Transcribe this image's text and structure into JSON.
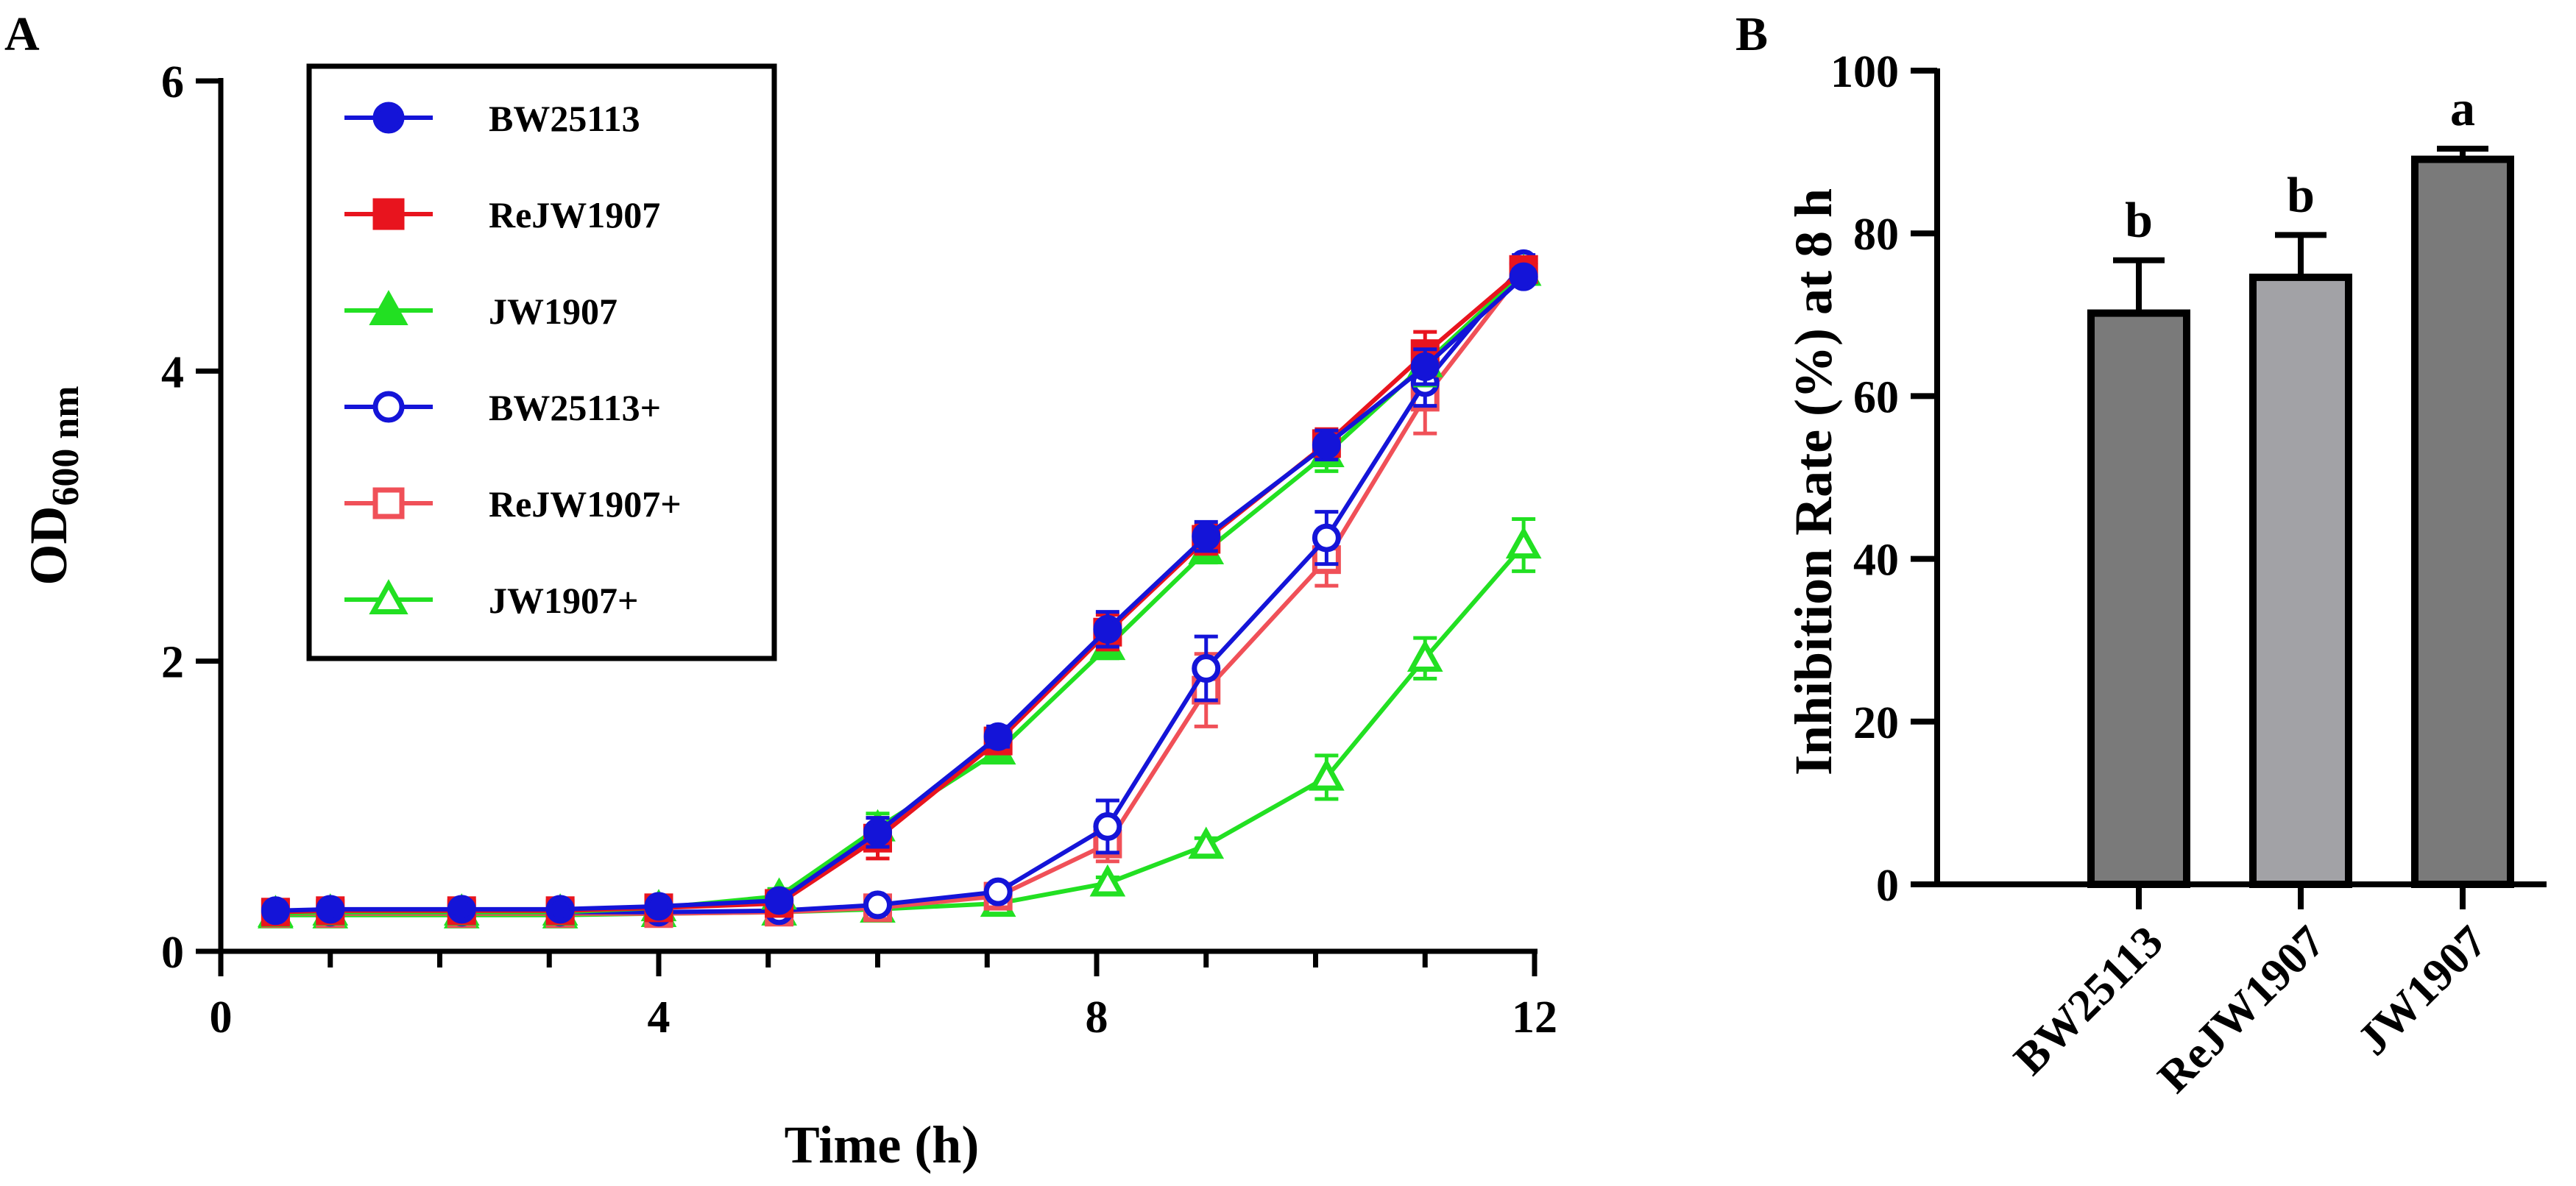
{
  "figure": {
    "panel_a_label": "A",
    "panel_b_label": "B"
  },
  "chart_data": [
    {
      "type": "line",
      "panel": "A",
      "title": "",
      "xlabel": "Time (h)",
      "ylabel": {
        "main": "OD",
        "subscript": "600 nm"
      },
      "xlim": [
        0,
        12
      ],
      "ylim": [
        0,
        6
      ],
      "xticks": [
        0,
        4,
        8,
        12
      ],
      "xticks_minor": [
        0,
        1,
        2,
        3,
        4,
        5,
        6,
        7,
        8,
        9,
        10,
        11,
        12
      ],
      "yticks": [
        0,
        2,
        4,
        6
      ],
      "legend_position": "top-left",
      "series": [
        {
          "name": "BW25113",
          "color": "#1414d8",
          "marker": "circle",
          "fill": "filled",
          "x": [
            0.5,
            1,
            2.2,
            3.1,
            4,
            5.1,
            6,
            7.1,
            8.1,
            9,
            10.1,
            11,
            11.9
          ],
          "y": [
            0.28,
            0.29,
            0.29,
            0.29,
            0.31,
            0.35,
            0.82,
            1.48,
            2.22,
            2.86,
            3.49,
            4.03,
            4.65
          ],
          "err": [
            0.03,
            0.03,
            0.03,
            0.03,
            0.03,
            0.05,
            0.1,
            0.07,
            0.12,
            0.1,
            0.1,
            0.12,
            0.05
          ]
        },
        {
          "name": "ReJW1907",
          "color": "#e8141e",
          "marker": "square",
          "fill": "filled",
          "x": [
            0.5,
            1,
            2.2,
            3.1,
            4,
            5.1,
            6,
            7.1,
            8.1,
            9,
            10.1,
            11,
            11.9
          ],
          "y": [
            0.27,
            0.28,
            0.28,
            0.28,
            0.3,
            0.33,
            0.78,
            1.45,
            2.2,
            2.84,
            3.5,
            4.12,
            4.7
          ],
          "err": [
            0.03,
            0.03,
            0.03,
            0.03,
            0.03,
            0.05,
            0.14,
            0.08,
            0.12,
            0.1,
            0.1,
            0.15,
            0.06
          ]
        },
        {
          "name": "JW1907",
          "color": "#22e022",
          "marker": "triangle",
          "fill": "filled",
          "x": [
            0.5,
            1,
            2.2,
            3.1,
            4,
            5.1,
            6,
            7.1,
            8.1,
            9,
            10.1,
            11,
            11.9
          ],
          "y": [
            0.26,
            0.27,
            0.27,
            0.27,
            0.3,
            0.38,
            0.85,
            1.38,
            2.1,
            2.76,
            3.43,
            4.05,
            4.68
          ],
          "err": [
            0.03,
            0.03,
            0.03,
            0.03,
            0.03,
            0.05,
            0.1,
            0.07,
            0.08,
            0.08,
            0.12,
            0.15,
            0.06
          ]
        },
        {
          "name": "BW25113+",
          "color": "#1414d8",
          "marker": "circle",
          "fill": "open",
          "x": [
            0.5,
            1,
            2.2,
            3.1,
            4,
            5.1,
            6,
            7.1,
            8.1,
            9,
            10.1,
            11,
            11.9
          ],
          "y": [
            0.27,
            0.27,
            0.27,
            0.27,
            0.27,
            0.28,
            0.32,
            0.41,
            0.86,
            1.95,
            2.85,
            3.92,
            4.74
          ],
          "err": [
            0.02,
            0.02,
            0.02,
            0.02,
            0.02,
            0.02,
            0.03,
            0.04,
            0.18,
            0.22,
            0.18,
            0.16,
            0.06
          ]
        },
        {
          "name": "ReJW1907+",
          "color": "#f05058",
          "marker": "square",
          "fill": "open",
          "x": [
            0.5,
            1,
            2.2,
            3.1,
            4,
            5.1,
            6,
            7.1,
            8.1,
            9,
            10.1,
            11,
            11.9
          ],
          "y": [
            0.26,
            0.26,
            0.26,
            0.26,
            0.26,
            0.27,
            0.3,
            0.38,
            0.74,
            1.8,
            2.7,
            3.82,
            4.7
          ],
          "err": [
            0.02,
            0.02,
            0.02,
            0.02,
            0.02,
            0.02,
            0.03,
            0.04,
            0.12,
            0.25,
            0.18,
            0.25,
            0.07
          ]
        },
        {
          "name": "JW1907+",
          "color": "#22e022",
          "marker": "triangle",
          "fill": "open",
          "x": [
            0.5,
            1,
            2.2,
            3.1,
            4,
            5.1,
            6,
            7.1,
            8.1,
            9,
            10.1,
            11,
            11.9
          ],
          "y": [
            0.25,
            0.25,
            0.25,
            0.25,
            0.26,
            0.27,
            0.29,
            0.33,
            0.47,
            0.73,
            1.2,
            2.02,
            2.8
          ],
          "err": [
            0.02,
            0.02,
            0.02,
            0.02,
            0.02,
            0.02,
            0.02,
            0.03,
            0.04,
            0.05,
            0.15,
            0.14,
            0.18
          ]
        }
      ]
    },
    {
      "type": "bar",
      "panel": "B",
      "title": "",
      "xlabel": "",
      "ylabel": "Inhibition Rate (%) at 8 h",
      "ylim": [
        0,
        100
      ],
      "yticks": [
        0,
        20,
        40,
        60,
        80,
        100
      ],
      "categories": [
        "BW25113",
        "ReJW1907",
        "JW1907"
      ],
      "values": [
        70.2,
        74.6,
        89.1
      ],
      "errors": [
        6.5,
        5.2,
        1.3
      ],
      "significance": [
        "b",
        "b",
        "a"
      ],
      "colors": [
        "#7a7a7a",
        "#a2a2a6",
        "#7a7a7a"
      ]
    }
  ]
}
